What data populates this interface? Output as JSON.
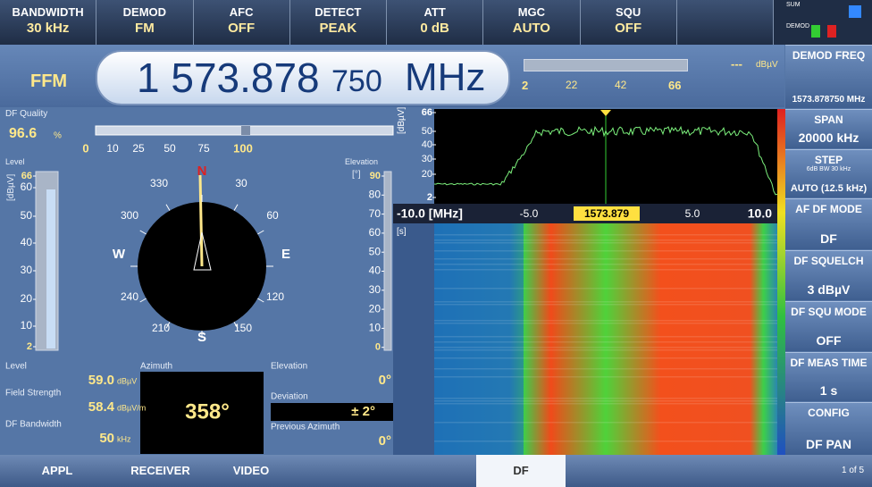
{
  "top_bar": [
    {
      "label": "BANDWIDTH",
      "value": "30 kHz"
    },
    {
      "label": "DEMOD",
      "value": "FM"
    },
    {
      "label": "AFC",
      "value": "OFF"
    },
    {
      "label": "DETECT",
      "value": "PEAK"
    },
    {
      "label": "ATT",
      "value": "0 dB"
    },
    {
      "label": "MGC",
      "value": "AUTO"
    },
    {
      "label": "SQU",
      "value": "OFF"
    }
  ],
  "status_icons": [
    "SUM",
    "DEMOD"
  ],
  "mode": "FFM",
  "frequency": {
    "main": "1 573.878",
    "fine": "750",
    "unit": "MHz"
  },
  "level_meter": {
    "scale": [
      "2",
      "22",
      "42",
      "66"
    ],
    "readout": "---",
    "unit": "dBµV"
  },
  "softkeys": [
    {
      "label": "DEMOD FREQ",
      "value": "1573.878750 MHz"
    },
    {
      "label": "SPAN",
      "value": "20000 kHz"
    },
    {
      "label": "STEP",
      "sub": "6dB BW  30 kHz",
      "value": "AUTO (12.5 kHz)"
    },
    {
      "label": "AF DF MODE",
      "value": "DF"
    },
    {
      "label": "DF SQUELCH",
      "value": "3 dBµV"
    },
    {
      "label": "DF SQU MODE",
      "value": "OFF"
    },
    {
      "label": "DF MEAS TIME",
      "value": "1 s"
    },
    {
      "label": "CONFIG",
      "value": "DF PAN"
    }
  ],
  "df_quality": {
    "label": "DF Quality",
    "value": "96.6",
    "unit": "%",
    "scale": [
      "0",
      "10",
      "25",
      "50",
      "75",
      "100"
    ]
  },
  "level_scale": {
    "label": "Level",
    "unit": "[dBµV]",
    "ticks": [
      "66",
      "60",
      "50",
      "40",
      "30",
      "20",
      "10",
      "2"
    ]
  },
  "elevation_scale": {
    "label": "Elevation",
    "unit": "[°]",
    "ticks": [
      "90",
      "80",
      "70",
      "60",
      "50",
      "40",
      "30",
      "20",
      "10",
      "0"
    ]
  },
  "compass": {
    "degrees": [
      "330",
      "30",
      "300",
      "60",
      "240",
      "120",
      "210",
      "150"
    ],
    "cardinals": [
      "N",
      "E",
      "S",
      "W"
    ]
  },
  "readouts": {
    "level": {
      "label": "Level",
      "value": "59.0",
      "unit": "dBµV"
    },
    "field_strength": {
      "label": "Field Strength",
      "value": "58.4",
      "unit": "dBµV/m"
    },
    "df_bandwidth": {
      "label": "DF Bandwidth",
      "value": "50",
      "unit": "kHz"
    },
    "azimuth": {
      "label": "Azimuth",
      "value": "358°"
    },
    "elevation": {
      "label": "Elevation",
      "value": "0°"
    },
    "deviation": {
      "label": "Deviation",
      "value": "± 2°"
    },
    "previous_azimuth": {
      "label": "Previous Azimuth",
      "value": "0°"
    }
  },
  "spectrum": {
    "y_unit": "[dBµV]",
    "y_ticks": [
      "66",
      "50",
      "40",
      "30",
      "20",
      "2"
    ],
    "x_start": "-10.0 [MHz]",
    "x_ticks": [
      "-5.0",
      "5.0",
      "10.0"
    ],
    "center": "1573.879",
    "waterfall_unit": "[s]"
  },
  "tabs": [
    "APPL",
    "RECEIVER",
    "VIDEO",
    "DF",
    "1 of 5"
  ]
}
